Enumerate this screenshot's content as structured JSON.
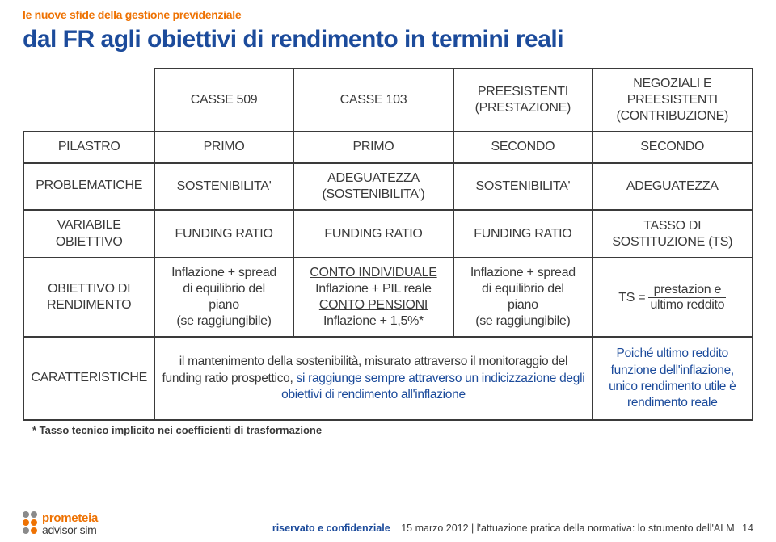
{
  "colors": {
    "brand_orange": "#ee7203",
    "brand_blue": "#1c4b9b",
    "text_dark": "#3a3a3a",
    "border": "#3a3a3a",
    "dot_grey": "#8a8a8a"
  },
  "header": {
    "topic": "le nuove sfide della gestione previdenziale",
    "title": "dal FR agli obiettivi di rendimento in termini reali"
  },
  "table": {
    "col_widths_pct": [
      18,
      19,
      22,
      19,
      22
    ],
    "rows": [
      {
        "label": "",
        "cells": [
          "CASSE 509",
          "CASSE 103",
          "PREESISTENTI (PRESTAZIONE)",
          "NEGOZIALI E PREESISTENTI (CONTRIBUZIONE)"
        ]
      },
      {
        "label": "PILASTRO",
        "cells": [
          "PRIMO",
          "PRIMO",
          "SECONDO",
          "SECONDO"
        ]
      },
      {
        "label": "PROBLEMATICHE",
        "cells": [
          "SOSTENIBILITA'",
          "ADEGUATEZZA (SOSTENIBILITA')",
          "SOSTENIBILITA'",
          "ADEGUATEZZA"
        ]
      },
      {
        "label": "VARIABILE OBIETTIVO",
        "cells": [
          "FUNDING RATIO",
          "FUNDING RATIO",
          "FUNDING RATIO",
          "TASSO DI SOSTITUZIONE (TS)"
        ]
      }
    ],
    "obiettivo_rend": {
      "label": "OBIETTIVO DI RENDIMENTO",
      "c1_l1": "Inflazione + spread",
      "c1_l2": "di equilibrio del",
      "c1_l3": "piano",
      "c1_l4": "(se raggiungibile)",
      "c2_l1": "CONTO INDIVIDUALE",
      "c2_l2": "Inflazione + PIL reale",
      "c2_l3": "CONTO PENSIONI",
      "c2_l4": "Inflazione + 1,5%*",
      "c3_l1": "Inflazione + spread",
      "c3_l2": "di equilibrio del",
      "c3_l3": "piano",
      "c3_l4": "(se raggiungibile)",
      "formula_prefix": "TS =",
      "formula_top": "prestazion e",
      "formula_bot": "ultimo reddito"
    },
    "caratteristiche": {
      "label": "CARATTERISTICHE",
      "merged_pre": "il mantenimento della sostenibilità, misurato attraverso il monitoraggio del funding ratio prospettico,",
      "merged_blue": " si raggiunge sempre attraverso un indicizzazione degli obiettivi di rendimento all'inflazione",
      "right_text": "Poiché ultimo reddito funzione dell'inflazione, unico rendimento utile è rendimento reale"
    }
  },
  "footnote": "* Tasso tecnico implicito nei coefficienti di trasformazione",
  "logo": {
    "line1": "prometeia",
    "line2": "advisor sim"
  },
  "footer": {
    "confidential": "riservato e confidenziale",
    "meta": "15 marzo 2012 | l'attuazione pratica della normativa: lo strumento dell'ALM",
    "page": "14"
  }
}
